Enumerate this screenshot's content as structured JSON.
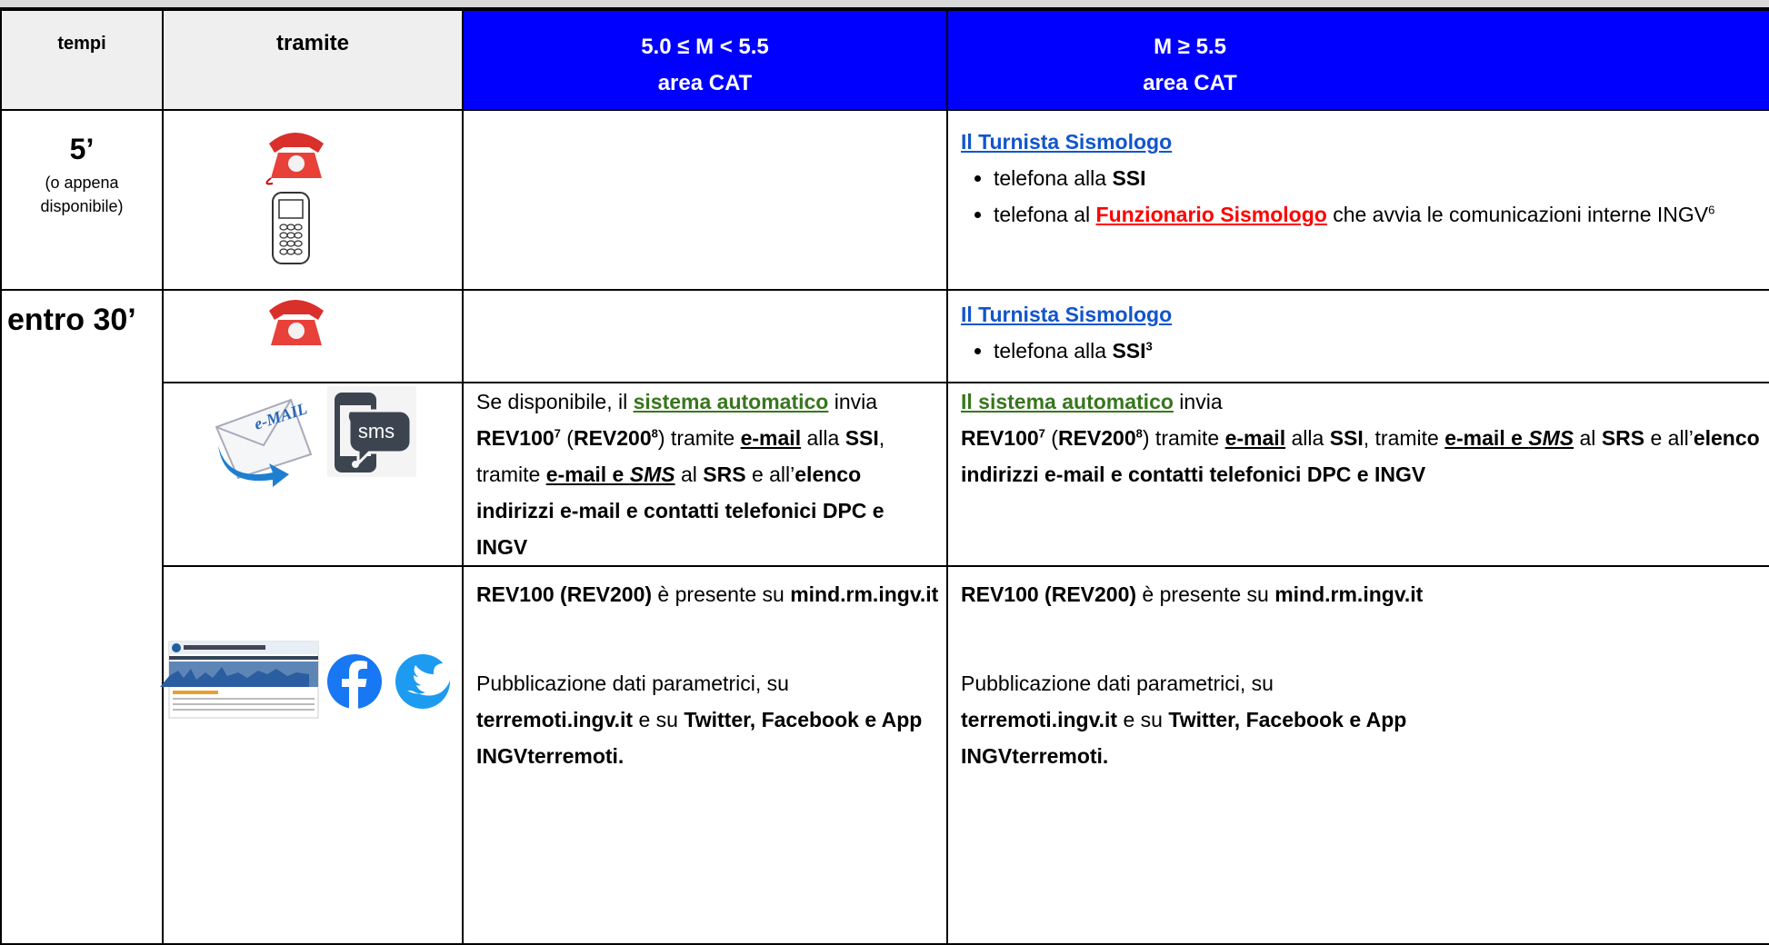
{
  "table": {
    "header": [
      "tempi",
      "tramite",
      [
        "5.0 ≤ M < 5.5",
        "area CAT"
      ],
      [
        "M ≥ 5.5",
        "area CAT"
      ]
    ],
    "rows": [
      {
        "time": "5’",
        "time_note": "(o appena disponibile)",
        "col_b": {
          "title": "Il Turnista Sismologo",
          "items": [
            [
              "telefona alla ",
              "SSI"
            ],
            [
              "telefona al ",
              "Funzionario Sismologo",
              " che avvia le comunicazioni interne INGV",
              "6"
            ]
          ]
        }
      },
      {
        "time": "entro 30’",
        "col_b": {
          "title": "Il Turnista Sismologo",
          "items": [
            [
              "telefona alla ",
              "SSI",
              "3"
            ]
          ]
        }
      },
      {
        "icons": [
          "e-MAIL",
          "sms"
        ],
        "col_a": [
          "Se disponibile, il ",
          "sistema automatico",
          " invia ",
          "REV100",
          "7",
          " (",
          "REV200",
          "8",
          ") tramite ",
          "e-mail",
          " alla ",
          "SSI",
          ", tramite ",
          "e-mail e ",
          "SMS",
          " al ",
          "SRS",
          " e all’",
          "elenco indirizzi e-mail e contatti telefonici DPC e INGV"
        ],
        "col_b": [
          "Il sistema automatico",
          " invia",
          "REV100",
          "7",
          " (",
          "REV200",
          "8",
          ") tramite ",
          "e-mail",
          " alla ",
          "SSI",
          ", tramite ",
          "e-mail e ",
          "SMS",
          " al ",
          "SRS",
          " e all’",
          "elenco indirizzi e-mail e contatti telefonici DPC e INGV"
        ]
      },
      {
        "col_a": {
          "p1": [
            "REV100 (REV200)",
            " è presente su ",
            "mind.rm.ingv.it"
          ],
          "p2": [
            "Pubblicazione dati parametrici, su",
            "terremoti.ingv.it",
            " e su ",
            "Twitter, Facebook e App INGVterremoti."
          ]
        },
        "col_b": {
          "p1": [
            "REV100 (REV200)",
            " è presente su ",
            "mind.rm.ingv.it"
          ],
          "p2": [
            "Pubblicazione dati parametrici, su",
            "terremoti.ingv.it",
            " e su ",
            "Twitter, Facebook e App INGVterremoti."
          ]
        }
      }
    ]
  }
}
